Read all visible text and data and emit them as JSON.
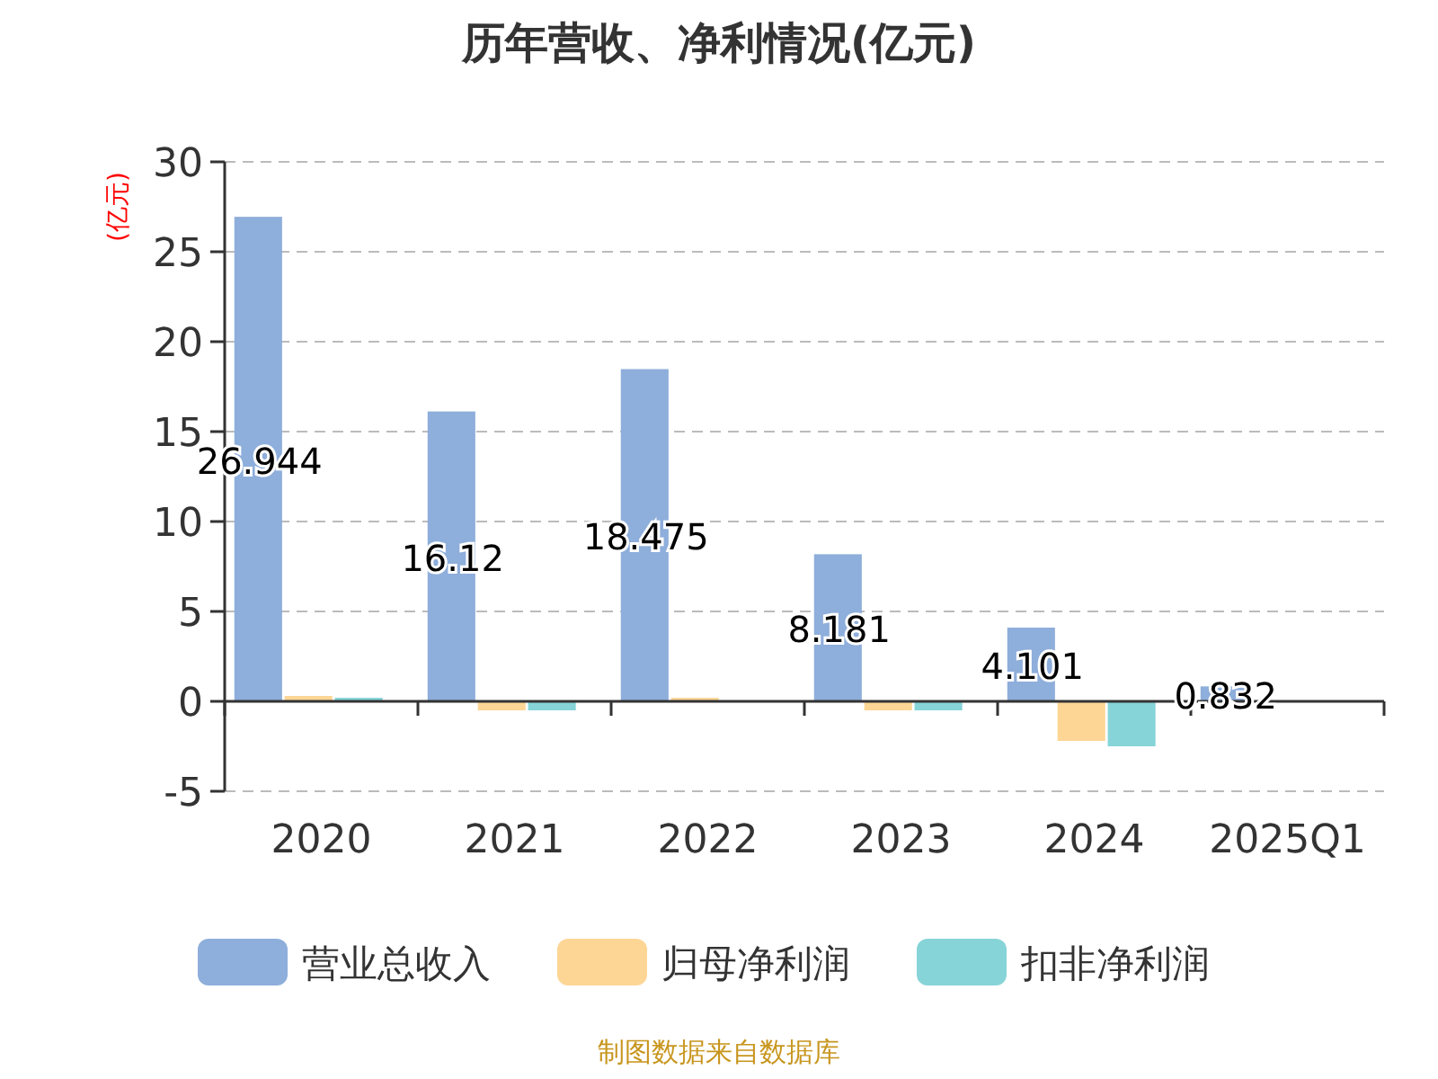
{
  "chart_data": {
    "type": "bar",
    "title": "历年营收、净利情况(亿元)",
    "ylabel": "(亿元)",
    "categories": [
      "2020",
      "2021",
      "2022",
      "2023",
      "2024",
      "2025Q1"
    ],
    "series": [
      {
        "name": "营业总收入",
        "color": "#8eaedb",
        "values": [
          26.944,
          16.12,
          18.475,
          8.181,
          4.101,
          0.832
        ],
        "value_labels": [
          "26.944",
          "16.12",
          "18.475",
          "8.181",
          "4.101",
          "0.832"
        ]
      },
      {
        "name": "归母净利润",
        "color": "#fdd696",
        "values": [
          0.3,
          -0.5,
          0.2,
          -0.5,
          -2.2,
          null
        ]
      },
      {
        "name": "扣非净利润",
        "color": "#86d4d8",
        "values": [
          0.2,
          -0.5,
          null,
          -0.5,
          -2.5,
          null
        ]
      }
    ],
    "ylim": [
      -5,
      30
    ],
    "yticks": [
      -5,
      0,
      5,
      10,
      15,
      20,
      25,
      30
    ],
    "grid": "y",
    "legend": "bottom",
    "annotations": [
      "制图数据来自数据库"
    ]
  }
}
